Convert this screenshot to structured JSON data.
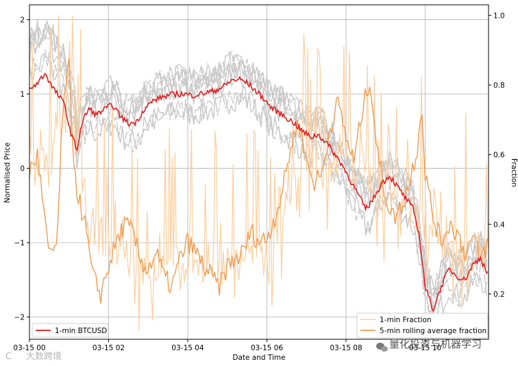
{
  "chart_data": {
    "type": "line",
    "xlabel": "Date and Time",
    "ylabel_left": "Normalised Price",
    "ylabel_right": "Fraction",
    "x_range_hours": [
      0,
      11.6
    ],
    "x_tick_labels": [
      "03-15 00",
      "03-15 02",
      "03-15 04",
      "03-15 06",
      "03-15 08",
      "03-15 10"
    ],
    "x_tick_hours": [
      0,
      2,
      4,
      6,
      8,
      10
    ],
    "ylim_left": [
      -2.3,
      2.2
    ],
    "yticks_left": [
      -2,
      -1,
      0,
      1,
      2
    ],
    "ylim_right": [
      0.07,
      1.03
    ],
    "yticks_right": [
      0.2,
      0.4,
      0.6,
      0.8,
      1.0
    ],
    "grid": true,
    "series": [
      {
        "name": "1-min BTCUSD",
        "axis": "left",
        "color": "#e31a1c",
        "points": [
          [
            0,
            1.05
          ],
          [
            0.2,
            1.15
          ],
          [
            0.4,
            1.28
          ],
          [
            0.55,
            1.12
          ],
          [
            0.7,
            1.0
          ],
          [
            0.9,
            0.85
          ],
          [
            1.0,
            0.55
          ],
          [
            1.1,
            0.4
          ],
          [
            1.2,
            0.25
          ],
          [
            1.3,
            0.55
          ],
          [
            1.4,
            0.7
          ],
          [
            1.5,
            0.8
          ],
          [
            1.7,
            0.72
          ],
          [
            1.9,
            0.8
          ],
          [
            2.1,
            0.85
          ],
          [
            2.3,
            0.7
          ],
          [
            2.5,
            0.6
          ],
          [
            2.7,
            0.62
          ],
          [
            2.9,
            0.8
          ],
          [
            3.1,
            0.9
          ],
          [
            3.3,
            0.95
          ],
          [
            3.5,
            0.98
          ],
          [
            3.7,
            1.0
          ],
          [
            3.9,
            1.0
          ],
          [
            4.1,
            0.98
          ],
          [
            4.3,
            1.0
          ],
          [
            4.5,
            1.02
          ],
          [
            4.7,
            1.05
          ],
          [
            4.9,
            1.1
          ],
          [
            5.1,
            1.18
          ],
          [
            5.3,
            1.2
          ],
          [
            5.5,
            1.15
          ],
          [
            5.7,
            1.05
          ],
          [
            5.9,
            0.95
          ],
          [
            6.1,
            0.82
          ],
          [
            6.3,
            0.75
          ],
          [
            6.5,
            0.68
          ],
          [
            6.7,
            0.6
          ],
          [
            6.9,
            0.5
          ],
          [
            7.1,
            0.42
          ],
          [
            7.3,
            0.45
          ],
          [
            7.5,
            0.35
          ],
          [
            7.7,
            0.2
          ],
          [
            7.9,
            0.05
          ],
          [
            8.1,
            -0.15
          ],
          [
            8.3,
            -0.35
          ],
          [
            8.5,
            -0.55
          ],
          [
            8.7,
            -0.4
          ],
          [
            8.9,
            -0.2
          ],
          [
            9.1,
            -0.1
          ],
          [
            9.3,
            -0.25
          ],
          [
            9.5,
            -0.4
          ],
          [
            9.7,
            -0.55
          ],
          [
            9.85,
            -0.9
          ],
          [
            10.0,
            -1.6
          ],
          [
            10.1,
            -1.75
          ],
          [
            10.2,
            -1.9
          ],
          [
            10.4,
            -1.6
          ],
          [
            10.6,
            -1.35
          ],
          [
            10.8,
            -1.45
          ],
          [
            11.0,
            -1.5
          ],
          [
            11.2,
            -1.3
          ],
          [
            11.4,
            -1.2
          ],
          [
            11.6,
            -1.45
          ]
        ]
      },
      {
        "name": "1-min Fraction",
        "axis": "right",
        "color": "#fdd0a2",
        "points": [
          [
            0,
            0.62
          ],
          [
            0.5,
            0.55
          ],
          [
            1.0,
            0.75
          ],
          [
            1.5,
            0.4
          ],
          [
            2.0,
            0.35
          ],
          [
            2.5,
            0.3
          ],
          [
            3.0,
            0.25
          ],
          [
            3.5,
            0.3
          ],
          [
            4.0,
            0.25
          ],
          [
            4.5,
            0.3
          ],
          [
            5.0,
            0.28
          ],
          [
            5.5,
            0.32
          ],
          [
            6.0,
            0.3
          ],
          [
            6.5,
            0.45
          ],
          [
            7.0,
            0.6
          ],
          [
            7.5,
            0.55
          ],
          [
            8.0,
            0.6
          ],
          [
            8.5,
            0.55
          ],
          [
            9.0,
            0.45
          ],
          [
            9.5,
            0.5
          ],
          [
            10.0,
            0.4
          ],
          [
            10.5,
            0.35
          ],
          [
            11.0,
            0.3
          ],
          [
            11.6,
            0.35
          ]
        ]
      },
      {
        "name": "5-min rolling average fraction",
        "axis": "right",
        "color": "#ee9a4f",
        "points": [
          [
            0,
            0.55
          ],
          [
            0.2,
            0.6
          ],
          [
            0.35,
            0.45
          ],
          [
            0.5,
            0.3
          ],
          [
            0.7,
            0.35
          ],
          [
            0.8,
            0.62
          ],
          [
            0.9,
            0.8
          ],
          [
            1.0,
            0.85
          ],
          [
            1.05,
            0.7
          ],
          [
            1.1,
            0.62
          ],
          [
            1.2,
            0.5
          ],
          [
            1.4,
            0.4
          ],
          [
            1.6,
            0.25
          ],
          [
            1.8,
            0.2
          ],
          [
            2.0,
            0.28
          ],
          [
            2.2,
            0.35
          ],
          [
            2.4,
            0.4
          ],
          [
            2.6,
            0.38
          ],
          [
            2.8,
            0.3
          ],
          [
            3.0,
            0.27
          ],
          [
            3.2,
            0.32
          ],
          [
            3.4,
            0.25
          ],
          [
            3.6,
            0.22
          ],
          [
            3.8,
            0.3
          ],
          [
            4.0,
            0.35
          ],
          [
            4.2,
            0.32
          ],
          [
            4.4,
            0.28
          ],
          [
            4.6,
            0.25
          ],
          [
            4.8,
            0.22
          ],
          [
            5.0,
            0.28
          ],
          [
            5.2,
            0.3
          ],
          [
            5.4,
            0.32
          ],
          [
            5.6,
            0.38
          ],
          [
            5.8,
            0.35
          ],
          [
            6.0,
            0.36
          ],
          [
            6.2,
            0.42
          ],
          [
            6.4,
            0.5
          ],
          [
            6.6,
            0.62
          ],
          [
            6.8,
            0.7
          ],
          [
            7.0,
            0.58
          ],
          [
            7.2,
            0.52
          ],
          [
            7.4,
            0.55
          ],
          [
            7.6,
            0.68
          ],
          [
            7.8,
            0.75
          ],
          [
            8.0,
            0.65
          ],
          [
            8.2,
            0.58
          ],
          [
            8.4,
            0.72
          ],
          [
            8.6,
            0.82
          ],
          [
            8.8,
            0.6
          ],
          [
            9.0,
            0.48
          ],
          [
            9.2,
            0.42
          ],
          [
            9.4,
            0.45
          ],
          [
            9.6,
            0.52
          ],
          [
            9.8,
            0.62
          ],
          [
            9.9,
            0.75
          ],
          [
            10.0,
            0.55
          ],
          [
            10.2,
            0.42
          ],
          [
            10.4,
            0.35
          ],
          [
            10.6,
            0.4
          ],
          [
            10.8,
            0.38
          ],
          [
            11.0,
            0.32
          ],
          [
            11.2,
            0.36
          ],
          [
            11.4,
            0.3
          ],
          [
            11.6,
            0.35
          ]
        ]
      }
    ],
    "legend_left": {
      "placement": "lower-left",
      "entries": [
        "1-min BTCUSD"
      ]
    },
    "legend_right": {
      "placement": "lower-right",
      "entries": [
        "1-min Fraction",
        "5-min rolling average fraction"
      ]
    }
  },
  "watermark_left": "大数跨境",
  "watermark_right": "量化投资与机器学习",
  "watermark_icon": "wechat-icon",
  "colors": {
    "btc_line": "#e31a1c",
    "fraction_thin": "#fdd0a2",
    "fraction_rolling": "#ee9a4f",
    "gray_lines": "#c8c8c8",
    "grid": "#b0b0b0"
  }
}
